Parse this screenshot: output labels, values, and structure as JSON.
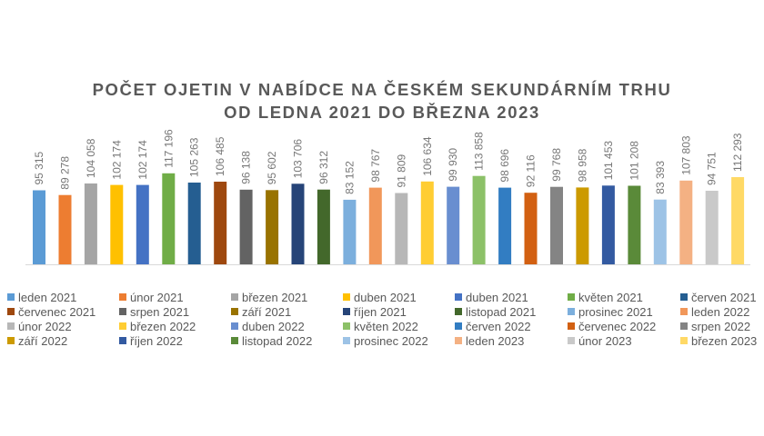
{
  "chart_data": {
    "type": "bar",
    "title": "POČET OJETIN V NABÍDCE NA ČESKÉM SEKUNDÁRNÍM TRHU OD LEDNA 2021 DO BŘEZNA 2023",
    "title_lines": [
      "POČET OJETIN V NABÍDCE NA ČESKÉM SEKUNDÁRNÍM TRHU",
      "OD LEDNA 2021 DO BŘEZNA 2023"
    ],
    "xlabel": "",
    "ylabel": "",
    "ylim": [
      0,
      140000
    ],
    "grid": false,
    "legend_position": "bottom",
    "categories": [
      "leden 2021",
      "únor 2021",
      "březen 2021",
      "duben 2021",
      "duben 2021",
      "květen 2021",
      "červen 2021",
      "červenec 2021",
      "srpen 2021",
      "září 2021",
      "říjen 2021",
      "listopad 2021",
      "prosinec 2021",
      "leden 2022",
      "únor 2022",
      "březen 2022",
      "duben 2022",
      "květen 2022",
      "červen 2022",
      "červenec 2022",
      "srpen 2022",
      "září 2022",
      "říjen 2022",
      "listopad 2022",
      "prosinec 2022",
      "leden 2023",
      "únor 2023",
      "březen 2023"
    ],
    "values": [
      95315,
      89278,
      104058,
      102174,
      102174,
      117196,
      105263,
      106485,
      96138,
      95602,
      103706,
      96312,
      83152,
      98767,
      91809,
      106634,
      99930,
      113858,
      98696,
      92116,
      99768,
      98958,
      101453,
      101208,
      83393,
      107803,
      94751,
      112293
    ],
    "value_labels": [
      "95 315",
      "89 278",
      "104 058",
      "102 174",
      "102 174",
      "117 196",
      "105 263",
      "106 485",
      "96 138",
      "95 602",
      "103 706",
      "96 312",
      "83 152",
      "98 767",
      "91 809",
      "106 634",
      "99 930",
      "113 858",
      "98 696",
      "92 116",
      "99 768",
      "98 958",
      "101 453",
      "101 208",
      "83 393",
      "107 803",
      "94 751",
      "112 293"
    ],
    "colors": [
      "#5B9BD5",
      "#ED7D31",
      "#A5A5A5",
      "#FFC000",
      "#4472C4",
      "#70AD47",
      "#255E91",
      "#9E480E",
      "#636363",
      "#997300",
      "#264478",
      "#43682B",
      "#7CAFDD",
      "#F1975A",
      "#B7B7B7",
      "#FFCD33",
      "#698ED0",
      "#8CC168",
      "#327DC2",
      "#D26012",
      "#848484",
      "#CC9A00",
      "#335AA1",
      "#5A8A39",
      "#9DC3E6",
      "#F4B183",
      "#C9C9C9",
      "#FFD966"
    ]
  }
}
